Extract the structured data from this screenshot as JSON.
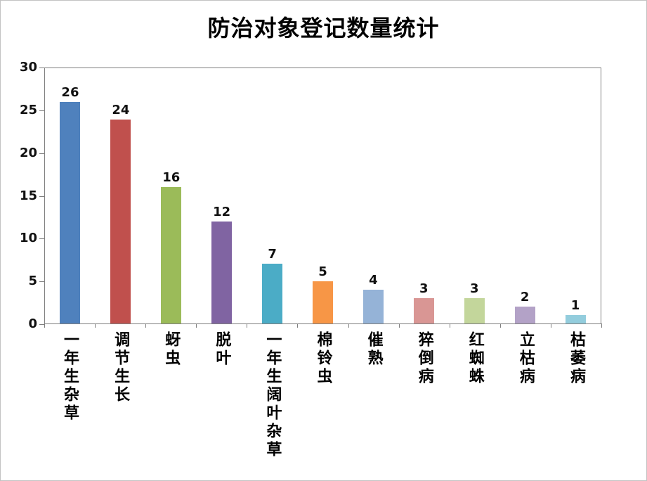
{
  "chart_data": {
    "type": "bar",
    "title": "防治对象登记数量统计",
    "categories": [
      "一年生杂草",
      "调节生长",
      "蚜虫",
      "脱叶",
      "一年生阔叶杂草",
      "棉铃虫",
      "催熟",
      "猝倒病",
      "红蜘蛛",
      "立枯病",
      "枯萎病"
    ],
    "values": [
      26,
      24,
      16,
      12,
      7,
      5,
      4,
      3,
      3,
      2,
      1
    ],
    "bar_colors": [
      "#4F81BD",
      "#C0504D",
      "#9BBB59",
      "#8064A2",
      "#4BACC6",
      "#F79646",
      "#95B3D7",
      "#D99694",
      "#C3D69B",
      "#B3A2C7",
      "#93CDDD"
    ],
    "xlabel": "",
    "ylabel": "",
    "ylim": [
      0,
      30
    ],
    "yticks": [
      0,
      5,
      10,
      15,
      20,
      25,
      30
    ],
    "grid": false,
    "legend": "none",
    "value_labels_shown": true
  }
}
